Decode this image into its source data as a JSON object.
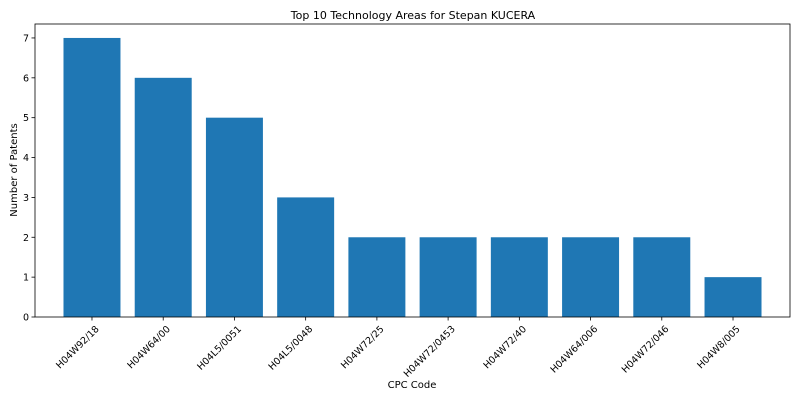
{
  "chart_data": {
    "type": "bar",
    "title": "Top 10 Technology Areas for Stepan KUCERA",
    "xlabel": "CPC Code",
    "ylabel": "Number of Patents",
    "categories": [
      "H04W92/18",
      "H04W64/00",
      "H04L5/0051",
      "H04L5/0048",
      "H04W72/25",
      "H04W72/0453",
      "H04W72/40",
      "H04W64/006",
      "H04W72/046",
      "H04W8/005"
    ],
    "values": [
      7,
      6,
      5,
      3,
      2,
      2,
      2,
      2,
      2,
      1
    ],
    "ylim": [
      0,
      7.35
    ],
    "yticks": [
      0,
      1,
      2,
      3,
      4,
      5,
      6,
      7
    ],
    "grid": false,
    "bar_color": "#1f77b4"
  }
}
